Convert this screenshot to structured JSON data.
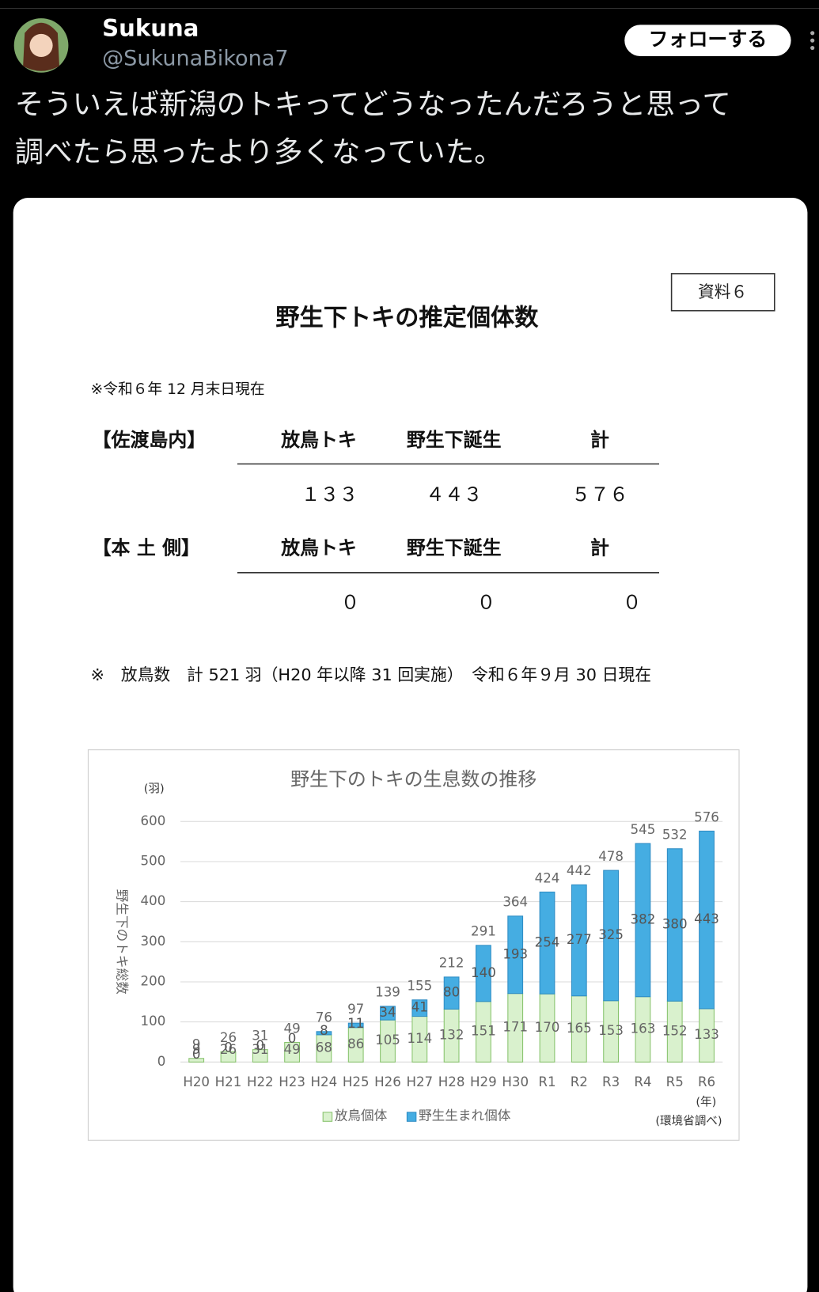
{
  "tweet": {
    "name": "Sukuna",
    "handle": "@SukunaBikona7",
    "follow": "フォローする",
    "text": [
      "そういえば新潟のトキってどうなったんだろうと思って",
      "調べたら思ったより多くなっていた。"
    ]
  },
  "document": {
    "badge": "資料６",
    "title": "野生下トキの推定個体数",
    "date": "※令和６年 12 月末日現在",
    "sections": [
      {
        "label": "【佐渡島内】",
        "headers": [
          "放鳥トキ",
          "野生下誕生",
          "計"
        ],
        "values": [
          "１３３",
          "４４３",
          "５７６"
        ]
      },
      {
        "label": "【本 土 側】",
        "headers": [
          "放鳥トキ",
          "野生下誕生",
          "計"
        ],
        "values": [
          "０",
          "０",
          "０"
        ]
      }
    ],
    "note": "※　放鳥数　計 521 羽（H20 年以降 31 回実施）　令和６年９月 30 日現在"
  },
  "chart_data": {
    "type": "stacked_bar",
    "title": "野生下のトキの生息数の推移",
    "y_label": "野生下のトキ総数",
    "y_unit": "(羽)",
    "x_unit": "(年)",
    "source": "(環境省調べ)",
    "categories": [
      "H20",
      "H21",
      "H22",
      "H23",
      "H24",
      "H25",
      "H26",
      "H27",
      "H28",
      "H29",
      "H30",
      "R1",
      "R2",
      "R3",
      "R4",
      "R5",
      "R6"
    ],
    "series": [
      {
        "name": "放鳥個体",
        "color": "#d9f1cd",
        "values": [
          9,
          26,
          31,
          49,
          68,
          86,
          105,
          114,
          132,
          151,
          171,
          170,
          165,
          153,
          163,
          152,
          133
        ]
      },
      {
        "name": "野生生まれ個体",
        "color": "#45ade2",
        "values": [
          0,
          0,
          0,
          0,
          8,
          11,
          34,
          41,
          80,
          140,
          193,
          254,
          277,
          325,
          382,
          380,
          443
        ]
      }
    ],
    "totals": [
      9,
      26,
      31,
      49,
      76,
      97,
      139,
      155,
      212,
      291,
      364,
      424,
      442,
      478,
      545,
      532,
      576
    ],
    "ylim": [
      0,
      600
    ],
    "yticks": [
      0,
      100,
      200,
      300,
      400,
      500,
      600
    ],
    "grid": true
  }
}
